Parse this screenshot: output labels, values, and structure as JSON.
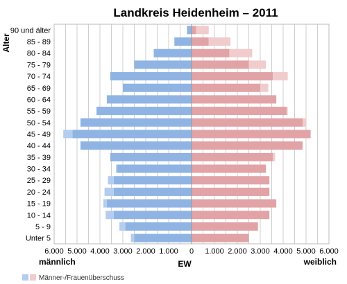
{
  "chart_data": {
    "type": "bar",
    "orientation": "horizontal",
    "title": "Landkreis Heidenheim – 2011",
    "ylabel": "Alter",
    "xlabel": "EW",
    "x_left_label": "männlich",
    "x_right_label": "weiblich",
    "xlim": [
      -6000,
      6000
    ],
    "x_ticks": [
      -6000,
      -5000,
      -4000,
      -3000,
      -2000,
      -1000,
      0,
      1000,
      2000,
      3000,
      4000,
      5000,
      6000
    ],
    "x_tick_labels": [
      "6.000",
      "5.000",
      "4.000",
      "3.000",
      "2.000",
      "1.000",
      "0",
      "1.000",
      "2.000",
      "3.000",
      "4.000",
      "5.000",
      "6.000"
    ],
    "grid": true,
    "legend_position": "bottom-left",
    "legend_label": "Männer-/Frauenüberschuss",
    "categories": [
      "90 und älter",
      "85 - 89",
      "80 - 84",
      "75 - 79",
      "70 - 74",
      "65 - 69",
      "60 - 64",
      "55 - 59",
      "50 - 54",
      "45 - 49",
      "40 - 44",
      "35 - 39",
      "30 - 34",
      "25 - 29",
      "20 - 24",
      "15 - 19",
      "10 - 14",
      "5 - 9",
      "Unter 5"
    ],
    "series": [
      {
        "name": "männlich",
        "values": [
          200,
          750,
          1650,
          2500,
          3550,
          3000,
          3700,
          4150,
          4850,
          5600,
          4850,
          3550,
          3300,
          3650,
          3800,
          3850,
          3750,
          3150,
          2650
        ]
      },
      {
        "name": "weiblich",
        "values": [
          750,
          1700,
          2650,
          3250,
          4200,
          3350,
          3700,
          4200,
          5000,
          5200,
          4850,
          3650,
          3250,
          3400,
          3400,
          3700,
          3400,
          2900,
          2500
        ]
      }
    ],
    "colors": {
      "male": "#8fb4e4",
      "male_surplus": "#b4cdee",
      "female": "#e2a3a6",
      "female_surplus": "#f0cccd",
      "grid": "#cfcfcf",
      "frame": "#bbbbbb"
    }
  }
}
